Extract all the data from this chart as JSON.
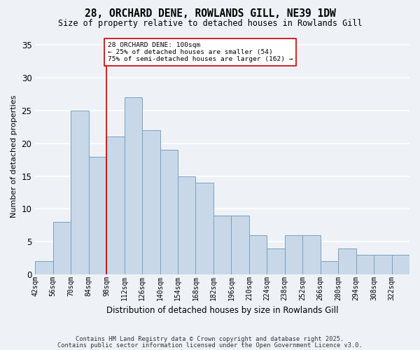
{
  "title1": "28, ORCHARD DENE, ROWLANDS GILL, NE39 1DW",
  "title2": "Size of property relative to detached houses in Rowlands Gill",
  "xlabel": "Distribution of detached houses by size in Rowlands Gill",
  "ylabel": "Number of detached properties",
  "bin_edges": [
    42,
    56,
    70,
    84,
    98,
    112,
    126,
    140,
    154,
    168,
    182,
    196,
    210,
    224,
    238,
    252,
    266,
    280,
    294,
    308,
    322,
    336
  ],
  "bin_labels": [
    "42sqm",
    "56sqm",
    "70sqm",
    "84sqm",
    "98sqm",
    "112sqm",
    "126sqm",
    "140sqm",
    "154sqm",
    "168sqm",
    "182sqm",
    "196sqm",
    "210sqm",
    "224sqm",
    "238sqm",
    "252sqm",
    "266sqm",
    "280sqm",
    "294sqm",
    "308sqm",
    "322sqm"
  ],
  "counts": [
    2,
    8,
    25,
    18,
    21,
    27,
    22,
    19,
    15,
    14,
    9,
    9,
    6,
    4,
    6,
    6,
    2,
    4,
    3,
    3,
    3
  ],
  "bar_color": "#c8d8e8",
  "bar_edge_color": "#7aA0c0",
  "red_line_x": 98,
  "red_line_color": "#cc0000",
  "annotation_text": "28 ORCHARD DENE: 100sqm\n← 25% of detached houses are smaller (54)\n75% of semi-detached houses are larger (162) →",
  "annotation_box_color": "#ffffff",
  "annotation_box_edge": "#cc0000",
  "ylim": [
    0,
    36
  ],
  "yticks": [
    0,
    5,
    10,
    15,
    20,
    25,
    30,
    35
  ],
  "footer1": "Contains HM Land Registry data © Crown copyright and database right 2025.",
  "footer2": "Contains public sector information licensed under the Open Government Licence v3.0.",
  "bg_color": "#eef2f7",
  "grid_color": "#ffffff"
}
